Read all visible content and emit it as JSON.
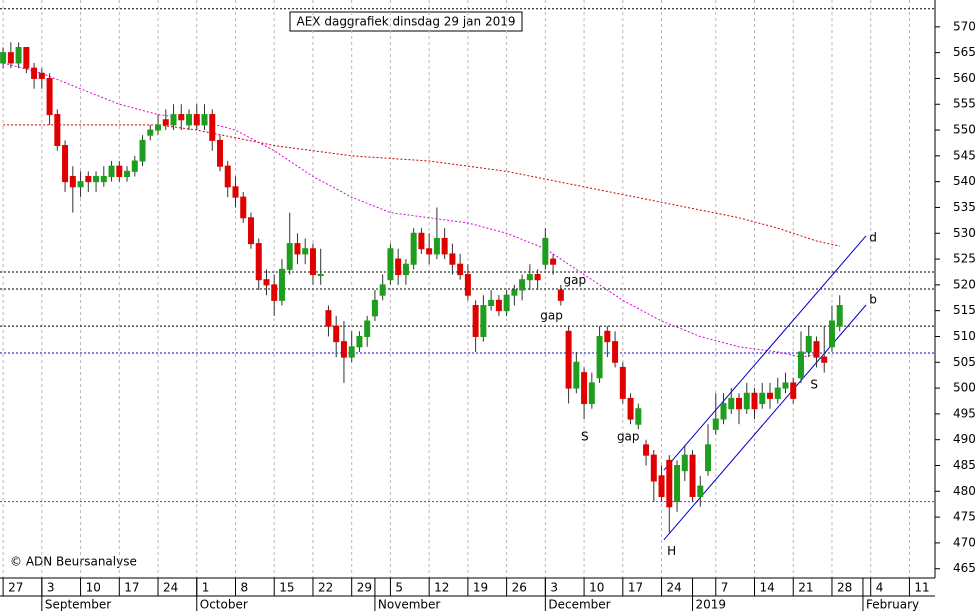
{
  "chart_data": {
    "type": "candlestick",
    "title": "AEX daggrafiek dinsdag 29 jan 2019",
    "copyright": "© ADN Beursanalyse",
    "up_color": "#1e9e1e",
    "down_color": "#e00000",
    "xlim": [
      -0.4,
      120.3
    ],
    "ylim": [
      463.2,
      575.2
    ],
    "yticks": [
      465,
      470,
      475,
      480,
      485,
      490,
      495,
      500,
      505,
      510,
      515,
      520,
      525,
      530,
      535,
      540,
      545,
      550,
      555,
      560,
      565,
      570
    ],
    "xticks": [
      {
        "value": 0,
        "label": "27"
      },
      {
        "value": 5,
        "label": "3"
      },
      {
        "value": 10,
        "label": "10"
      },
      {
        "value": 15,
        "label": "17"
      },
      {
        "value": 20,
        "label": "24"
      },
      {
        "value": 25,
        "label": "1"
      },
      {
        "value": 30,
        "label": "8"
      },
      {
        "value": 35,
        "label": "15"
      },
      {
        "value": 40,
        "label": "22"
      },
      {
        "value": 45,
        "label": "29"
      },
      {
        "value": 50,
        "label": "5"
      },
      {
        "value": 55,
        "label": "12"
      },
      {
        "value": 60,
        "label": "19"
      },
      {
        "value": 65,
        "label": "26"
      },
      {
        "value": 70,
        "label": "3"
      },
      {
        "value": 75,
        "label": "10"
      },
      {
        "value": 80,
        "label": "17"
      },
      {
        "value": 85,
        "label": "24"
      },
      {
        "value": 92,
        "label": "7"
      },
      {
        "value": 97,
        "label": "14"
      },
      {
        "value": 102,
        "label": "21"
      },
      {
        "value": 107,
        "label": "28"
      },
      {
        "value": 112,
        "label": "4"
      },
      {
        "value": 117,
        "label": "11"
      }
    ],
    "month_labels": [
      {
        "value": 5,
        "label": "September"
      },
      {
        "value": 25,
        "label": "October"
      },
      {
        "value": 48,
        "label": "November"
      },
      {
        "value": 70,
        "label": "December"
      },
      {
        "value": 89,
        "label": "2019"
      },
      {
        "value": 111,
        "label": "February"
      }
    ],
    "open": [
      563,
      565,
      563,
      566,
      562,
      561,
      560,
      553,
      547,
      541,
      539,
      541,
      540,
      540,
      541,
      543,
      541,
      542,
      544,
      549,
      550,
      552,
      551,
      553,
      551,
      553,
      551,
      553,
      548,
      543,
      539,
      537,
      533,
      528,
      521,
      520,
      517,
      523,
      528,
      526,
      527,
      522,
      515,
      512,
      509,
      506,
      508,
      510,
      514,
      518,
      521,
      525,
      522,
      524,
      530,
      527,
      526,
      529,
      526,
      524,
      522,
      516,
      510,
      516,
      517,
      515,
      518,
      519,
      521,
      522,
      524,
      525,
      519,
      511,
      500,
      503,
      497,
      502,
      511,
      509,
      504,
      498,
      493,
      489,
      487,
      483,
      486,
      478,
      484,
      487,
      479,
      484,
      492,
      494,
      496,
      498,
      496,
      499,
      497,
      499,
      498,
      500,
      501,
      502,
      507,
      509,
      506,
      508,
      512
    ],
    "high": [
      566,
      567,
      567,
      566,
      563,
      562,
      561,
      554,
      548,
      543,
      542,
      542,
      542,
      543,
      544,
      544,
      543,
      545,
      549,
      551,
      553,
      554,
      555,
      555,
      554,
      555,
      555,
      554,
      549,
      544,
      541,
      538,
      534,
      529,
      523,
      522,
      525,
      534,
      530,
      529,
      528,
      527,
      516,
      514,
      513,
      511,
      511,
      514,
      519,
      522,
      528,
      527,
      525,
      531,
      531,
      530,
      535,
      531,
      528,
      526,
      524,
      517,
      518,
      519,
      518,
      519,
      520,
      522,
      524,
      523,
      531,
      526,
      520,
      512,
      507,
      504,
      503,
      512,
      512,
      511,
      505,
      499,
      497,
      490,
      488,
      485,
      487,
      486,
      489,
      488,
      483,
      493,
      499,
      499,
      500,
      499,
      501,
      500,
      501,
      501,
      502,
      503,
      502,
      511,
      512,
      510,
      512,
      516,
      518
    ],
    "low": [
      562,
      562,
      562,
      561,
      558,
      558,
      551,
      546,
      538,
      534,
      537,
      538,
      538,
      539,
      540,
      540,
      540,
      541,
      543,
      548,
      549,
      550,
      550,
      550,
      550,
      550,
      550,
      546,
      542,
      537,
      535,
      532,
      527,
      519,
      518,
      514,
      516,
      522,
      524,
      524,
      520,
      520,
      510,
      506,
      501,
      505,
      507,
      508,
      513,
      517,
      520,
      520,
      520,
      523,
      526,
      524,
      525,
      525,
      522,
      521,
      517,
      507,
      509,
      515,
      514,
      514,
      516,
      517,
      519,
      519,
      523,
      522,
      516,
      497,
      499,
      494,
      496,
      501,
      506,
      504,
      497,
      493,
      492,
      485,
      478,
      478,
      472,
      476,
      482,
      478,
      477,
      483,
      491,
      493,
      495,
      493,
      495,
      494,
      496,
      496,
      497,
      499,
      497,
      501,
      506,
      504,
      503,
      507,
      511
    ],
    "close": [
      565,
      563,
      566,
      562,
      560,
      560,
      553,
      547,
      540,
      539,
      540,
      540,
      541,
      541,
      543,
      541,
      542,
      544,
      548,
      550,
      551,
      551,
      553,
      552,
      553,
      551,
      553,
      548,
      543,
      539,
      537,
      533,
      528,
      521,
      520,
      517,
      523,
      528,
      526,
      527,
      522,
      522,
      512,
      509,
      506,
      508,
      510,
      513,
      517,
      520,
      527,
      522,
      524,
      530,
      527,
      526,
      529,
      526,
      524,
      522,
      518,
      510,
      516,
      517,
      515,
      518,
      519,
      521,
      522,
      521,
      529,
      524,
      517,
      500,
      505,
      497,
      501,
      510,
      509,
      505,
      498,
      494,
      496,
      487,
      482,
      479,
      477,
      485,
      487,
      479,
      481,
      489,
      494,
      497,
      498,
      496,
      499,
      496,
      499,
      498,
      500,
      501,
      498,
      507,
      510,
      506,
      505,
      513,
      516
    ],
    "moving_averages": [
      {
        "color": "#e000e0",
        "x": [
          0,
          5,
          10,
          15,
          20,
          25,
          30,
          35,
          40,
          45,
          50,
          55,
          60,
          65,
          70,
          75,
          80,
          85,
          90,
          95,
          100,
          103,
          105
        ],
        "values": [
          563,
          561,
          558,
          555,
          553,
          552,
          550,
          546,
          541,
          537,
          534,
          533,
          532,
          530,
          527,
          522,
          517,
          513,
          510,
          508,
          507,
          506,
          506.5
        ]
      },
      {
        "color": "#d00000",
        "x": [
          0,
          20,
          25,
          35,
          45,
          55,
          65,
          75,
          85,
          95,
          100,
          105,
          108
        ],
        "values": [
          551,
          551,
          550,
          547,
          545,
          544,
          542,
          539,
          536,
          533,
          531,
          528.5,
          527.5
        ]
      }
    ],
    "levels": [
      {
        "value": 573.5,
        "color": "#000000"
      },
      {
        "value": 522.5,
        "color": "#000000"
      },
      {
        "value": 519.2,
        "color": "#000000"
      },
      {
        "value": 512,
        "color": "#000000"
      },
      {
        "value": 506.8,
        "color": "#0000cc"
      },
      {
        "value": 478,
        "color": "#cc00cc"
      }
    ],
    "trend_lines": [
      {
        "color": "#0000cc",
        "x": [
          85.3,
          111.4
        ],
        "values": [
          470.6,
          516.1
        ]
      },
      {
        "color": "#0000cc",
        "x": [
          85.3,
          111.4
        ],
        "values": [
          484.1,
          529.5
        ]
      }
    ],
    "annotations": [
      {
        "text": "gap",
        "x": 73.8,
        "y": 520.8,
        "color": "#000000"
      },
      {
        "text": "gap",
        "x": 70.8,
        "y": 514,
        "color": "#b0b0b0"
      },
      {
        "text": "gap",
        "x": 80.7,
        "y": 490.5,
        "color": "#b0b0b0"
      },
      {
        "text": "S",
        "x": 75.1,
        "y": 490.5,
        "color": "#0000cc"
      },
      {
        "text": "S",
        "x": 104.7,
        "y": 500.6,
        "color": "#0000cc"
      },
      {
        "text": "H",
        "x": 86.3,
        "y": 468.3,
        "color": "#0000cc"
      },
      {
        "text": "d",
        "x": 112.3,
        "y": 529.1,
        "color": "#0000cc"
      },
      {
        "text": "b",
        "x": 112.3,
        "y": 517.1,
        "color": "#0000cc"
      }
    ]
  }
}
